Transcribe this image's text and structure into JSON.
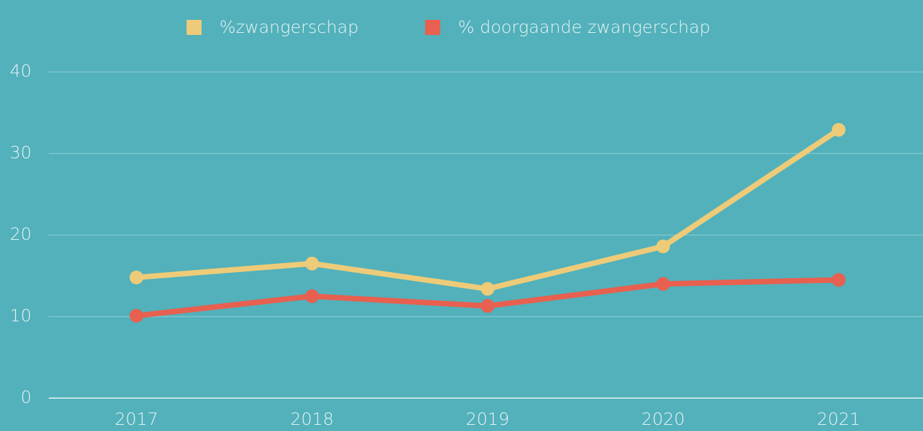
{
  "chart_data": {
    "type": "line",
    "categories": [
      "2017",
      "2018",
      "2019",
      "2020",
      "2021"
    ],
    "series": [
      {
        "name": "%zwangerschap",
        "color": "#edcb78",
        "values": [
          14.8,
          16.5,
          13.4,
          18.6,
          32.9
        ]
      },
      {
        "name": "% doorgaande zwangerschap",
        "color": "#e8604f",
        "values": [
          10.1,
          12.5,
          11.3,
          14.0,
          14.5
        ]
      }
    ],
    "ylim": [
      0,
      40
    ],
    "yticks": [
      0,
      10,
      20,
      30,
      40
    ],
    "grid": true,
    "legend": "top"
  }
}
